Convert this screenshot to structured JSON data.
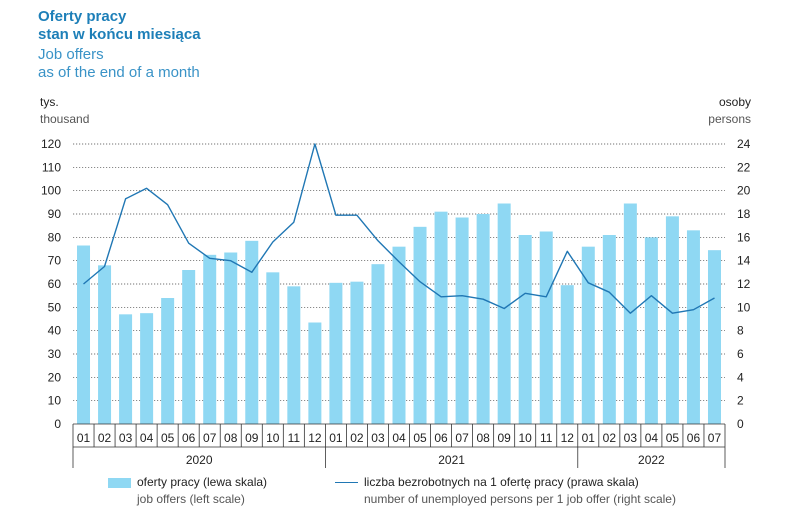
{
  "title": {
    "pl_line1": "Oferty pracy",
    "pl_line2": "stan w końcu miesiąca",
    "en_line1": "Job offers",
    "en_line2": "as of the end of a month"
  },
  "units": {
    "left_pl": "tys.",
    "left_en": "thousand",
    "right_pl": "osoby",
    "right_en": "persons"
  },
  "colors": {
    "bar": "#8fd8f3",
    "line": "#2077b4",
    "grid": "#444444"
  },
  "chart_data": {
    "type": "bar",
    "title": "Oferty pracy stan w końcu miesiąca / Job offers as of the end of a month",
    "categories": [
      "01",
      "02",
      "03",
      "04",
      "05",
      "06",
      "07",
      "08",
      "09",
      "10",
      "11",
      "12",
      "01",
      "02",
      "03",
      "04",
      "05",
      "06",
      "07",
      "08",
      "09",
      "10",
      "11",
      "12",
      "01",
      "02",
      "03",
      "04",
      "05",
      "06",
      "07"
    ],
    "years": [
      {
        "label": "2020",
        "months": 12
      },
      {
        "label": "2021",
        "months": 12
      },
      {
        "label": "2022",
        "months": 7
      }
    ],
    "left_axis": {
      "ylim": [
        0,
        120
      ],
      "ticks": [
        "0",
        "10",
        "20",
        "30",
        "40",
        "50",
        "60",
        "70",
        "80",
        "90",
        "100",
        "110",
        "120"
      ]
    },
    "right_axis": {
      "ylim": [
        0,
        24
      ],
      "ticks": [
        "0",
        "2",
        "4",
        "6",
        "8",
        "10",
        "12",
        "14",
        "16",
        "18",
        "20",
        "22",
        "24"
      ]
    },
    "series": [
      {
        "name": "oferty pracy (lewa skala)",
        "name_en": "job offers (left scale)",
        "kind": "bar",
        "axis": "left",
        "values": [
          76.5,
          68,
          47,
          47.5,
          54,
          66,
          72.5,
          73.5,
          78.5,
          65,
          59,
          43.5,
          60.5,
          61,
          68.5,
          76,
          84.5,
          91,
          88.5,
          90,
          94.5,
          81,
          82.5,
          59.5,
          76,
          81,
          94.5,
          80,
          89,
          83,
          74.5
        ]
      },
      {
        "name": "liczba bezrobotnych na 1 ofertę pracy (prawa skala)",
        "name_en": "number of unemployed persons per 1 job offer (right scale)",
        "kind": "line",
        "axis": "right",
        "values": [
          12,
          13.5,
          19.3,
          20.2,
          18.8,
          15.5,
          14.2,
          14,
          13,
          15.6,
          17.3,
          24,
          17.9,
          17.9,
          15.7,
          13.9,
          12.2,
          10.9,
          11,
          10.7,
          9.9,
          11.2,
          10.9,
          14.8,
          12.1,
          11.3,
          9.5,
          11,
          9.5,
          9.8,
          10.8
        ]
      }
    ]
  }
}
